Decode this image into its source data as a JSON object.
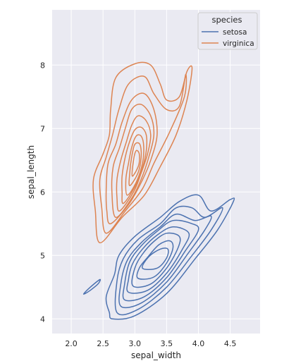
{
  "chart_data": {
    "type": "kde_contour",
    "xlabel": "sepal_width",
    "ylabel": "sepal_length",
    "xlim": [
      1.7,
      4.97
    ],
    "ylim": [
      3.77,
      8.87
    ],
    "xticks": [
      2.0,
      2.5,
      3.0,
      3.5,
      4.0,
      4.5
    ],
    "yticks": [
      4,
      5,
      6,
      7,
      8
    ],
    "xtick_labels": [
      "2.0",
      "2.5",
      "3.0",
      "3.5",
      "4.0",
      "4.5"
    ],
    "ytick_labels": [
      "4",
      "5",
      "6",
      "7",
      "8"
    ],
    "grid": true,
    "legend": {
      "title": "species",
      "placement": "top-right",
      "entries": [
        {
          "name": "setosa",
          "color": "#4c72b0"
        },
        {
          "name": "virginica",
          "color": "#dd8452"
        }
      ]
    },
    "series": [
      {
        "name": "setosa",
        "color": "#4c72b0",
        "contours": [
          [
            [
              2.65,
              4.0
            ],
            [
              3.0,
              4.05
            ],
            [
              3.5,
              4.4
            ],
            [
              3.95,
              4.95
            ],
            [
              4.3,
              5.4
            ],
            [
              4.55,
              5.85
            ],
            [
              4.5,
              5.88
            ],
            [
              4.2,
              5.7
            ],
            [
              4.0,
              5.95
            ],
            [
              3.7,
              5.85
            ],
            [
              3.4,
              5.6
            ],
            [
              3.0,
              5.3
            ],
            [
              2.75,
              5.0
            ],
            [
              2.68,
              4.7
            ],
            [
              2.55,
              4.35
            ],
            [
              2.6,
              4.1
            ]
          ],
          [
            [
              2.72,
              4.1
            ],
            [
              3.05,
              4.15
            ],
            [
              3.5,
              4.5
            ],
            [
              3.9,
              5.0
            ],
            [
              4.2,
              5.4
            ],
            [
              4.38,
              5.75
            ],
            [
              4.1,
              5.6
            ],
            [
              3.9,
              5.75
            ],
            [
              3.65,
              5.75
            ],
            [
              3.4,
              5.5
            ],
            [
              3.05,
              5.25
            ],
            [
              2.82,
              4.95
            ],
            [
              2.72,
              4.6
            ]
          ],
          [
            [
              2.78,
              4.2
            ],
            [
              3.1,
              4.25
            ],
            [
              3.5,
              4.58
            ],
            [
              3.85,
              5.05
            ],
            [
              4.1,
              5.4
            ],
            [
              4.2,
              5.62
            ],
            [
              3.95,
              5.55
            ],
            [
              3.65,
              5.65
            ],
            [
              3.4,
              5.45
            ],
            [
              3.1,
              5.2
            ],
            [
              2.88,
              4.92
            ],
            [
              2.78,
              4.55
            ]
          ],
          [
            [
              2.84,
              4.3
            ],
            [
              3.15,
              4.35
            ],
            [
              3.5,
              4.65
            ],
            [
              3.8,
              5.08
            ],
            [
              4.0,
              5.4
            ],
            [
              3.9,
              5.5
            ],
            [
              3.6,
              5.55
            ],
            [
              3.35,
              5.38
            ],
            [
              3.1,
              5.15
            ],
            [
              2.92,
              4.9
            ],
            [
              2.84,
              4.55
            ]
          ],
          [
            [
              2.9,
              4.42
            ],
            [
              3.2,
              4.45
            ],
            [
              3.5,
              4.72
            ],
            [
              3.75,
              5.1
            ],
            [
              3.85,
              5.35
            ],
            [
              3.6,
              5.45
            ],
            [
              3.35,
              5.32
            ],
            [
              3.12,
              5.1
            ],
            [
              2.96,
              4.86
            ],
            [
              2.9,
              4.62
            ]
          ],
          [
            [
              2.97,
              4.52
            ],
            [
              3.25,
              4.55
            ],
            [
              3.5,
              4.8
            ],
            [
              3.68,
              5.12
            ],
            [
              3.7,
              5.3
            ],
            [
              3.5,
              5.35
            ],
            [
              3.3,
              5.22
            ],
            [
              3.12,
              5.02
            ],
            [
              3.0,
              4.8
            ]
          ],
          [
            [
              3.05,
              4.64
            ],
            [
              3.3,
              4.66
            ],
            [
              3.5,
              4.88
            ],
            [
              3.6,
              5.12
            ],
            [
              3.55,
              5.23
            ],
            [
              3.38,
              5.17
            ],
            [
              3.2,
              4.97
            ],
            [
              3.07,
              4.8
            ]
          ],
          [
            [
              3.12,
              4.8
            ],
            [
              3.35,
              4.8
            ],
            [
              3.5,
              4.96
            ],
            [
              3.52,
              5.1
            ],
            [
              3.4,
              5.1
            ],
            [
              3.22,
              4.98
            ]
          ],
          [
            [
              2.2,
              4.4
            ],
            [
              2.3,
              4.5
            ],
            [
              2.45,
              4.62
            ],
            [
              2.42,
              4.55
            ],
            [
              2.3,
              4.45
            ],
            [
              2.22,
              4.4
            ]
          ]
        ]
      },
      {
        "name": "virginica",
        "color": "#dd8452",
        "contours": [
          [
            [
              2.45,
              5.2
            ],
            [
              2.8,
              5.6
            ],
            [
              3.15,
              5.95
            ],
            [
              3.4,
              6.4
            ],
            [
              3.65,
              6.9
            ],
            [
              3.82,
              7.45
            ],
            [
              3.9,
              7.95
            ],
            [
              3.82,
              7.9
            ],
            [
              3.7,
              7.5
            ],
            [
              3.5,
              7.45
            ],
            [
              3.4,
              7.7
            ],
            [
              3.25,
              8.0
            ],
            [
              3.0,
              8.02
            ],
            [
              2.7,
              7.8
            ],
            [
              2.62,
              7.3
            ],
            [
              2.6,
              6.9
            ],
            [
              2.5,
              6.6
            ],
            [
              2.35,
              6.2
            ],
            [
              2.38,
              5.7
            ]
          ],
          [
            [
              2.55,
              5.35
            ],
            [
              2.85,
              5.7
            ],
            [
              3.12,
              6.05
            ],
            [
              3.3,
              6.45
            ],
            [
              3.55,
              6.95
            ],
            [
              3.78,
              7.5
            ],
            [
              3.8,
              7.85
            ],
            [
              3.7,
              7.35
            ],
            [
              3.5,
              7.3
            ],
            [
              3.3,
              7.55
            ],
            [
              3.15,
              7.82
            ],
            [
              2.9,
              7.7
            ],
            [
              2.75,
              7.3
            ],
            [
              2.65,
              6.9
            ],
            [
              2.55,
              6.55
            ],
            [
              2.45,
              6.2
            ],
            [
              2.48,
              5.75
            ]
          ],
          [
            [
              2.62,
              5.5
            ],
            [
              2.9,
              5.8
            ],
            [
              3.1,
              6.15
            ],
            [
              3.25,
              6.5
            ],
            [
              3.35,
              6.9
            ],
            [
              3.3,
              7.3
            ],
            [
              3.15,
              7.55
            ],
            [
              2.95,
              7.45
            ],
            [
              2.8,
              7.1
            ],
            [
              2.7,
              6.75
            ],
            [
              2.58,
              6.45
            ],
            [
              2.55,
              6.05
            ],
            [
              2.56,
              5.7
            ]
          ],
          [
            [
              2.7,
              5.6
            ],
            [
              2.95,
              5.9
            ],
            [
              3.1,
              6.2
            ],
            [
              3.22,
              6.55
            ],
            [
              3.3,
              6.9
            ],
            [
              3.25,
              7.2
            ],
            [
              3.1,
              7.38
            ],
            [
              2.95,
              7.3
            ],
            [
              2.85,
              7.0
            ],
            [
              2.76,
              6.7
            ],
            [
              2.66,
              6.4
            ],
            [
              2.64,
              6.0
            ]
          ],
          [
            [
              2.76,
              5.7
            ],
            [
              2.98,
              6.0
            ],
            [
              3.1,
              6.3
            ],
            [
              3.2,
              6.6
            ],
            [
              3.25,
              6.9
            ],
            [
              3.18,
              7.12
            ],
            [
              3.05,
              7.2
            ],
            [
              2.95,
              7.05
            ],
            [
              2.87,
              6.8
            ],
            [
              2.78,
              6.5
            ],
            [
              2.72,
              6.2
            ],
            [
              2.72,
              5.9
            ]
          ],
          [
            [
              2.82,
              5.82
            ],
            [
              3.0,
              6.08
            ],
            [
              3.12,
              6.38
            ],
            [
              3.18,
              6.65
            ],
            [
              3.18,
              6.9
            ],
            [
              3.1,
              7.02
            ],
            [
              3.0,
              6.98
            ],
            [
              2.92,
              6.8
            ],
            [
              2.85,
              6.55
            ],
            [
              2.8,
              6.25
            ],
            [
              2.8,
              6.0
            ]
          ],
          [
            [
              2.88,
              5.95
            ],
            [
              3.02,
              6.15
            ],
            [
              3.12,
              6.45
            ],
            [
              3.14,
              6.72
            ],
            [
              3.1,
              6.88
            ],
            [
              3.02,
              6.88
            ],
            [
              2.95,
              6.7
            ],
            [
              2.9,
              6.45
            ],
            [
              2.86,
              6.2
            ]
          ],
          [
            [
              2.92,
              6.1
            ],
            [
              3.05,
              6.3
            ],
            [
              3.1,
              6.55
            ],
            [
              3.08,
              6.75
            ],
            [
              3.0,
              6.75
            ],
            [
              2.95,
              6.55
            ],
            [
              2.92,
              6.3
            ]
          ],
          [
            [
              2.96,
              6.25
            ],
            [
              3.06,
              6.42
            ],
            [
              3.07,
              6.6
            ],
            [
              3.02,
              6.65
            ],
            [
              2.98,
              6.5
            ]
          ]
        ]
      }
    ]
  }
}
